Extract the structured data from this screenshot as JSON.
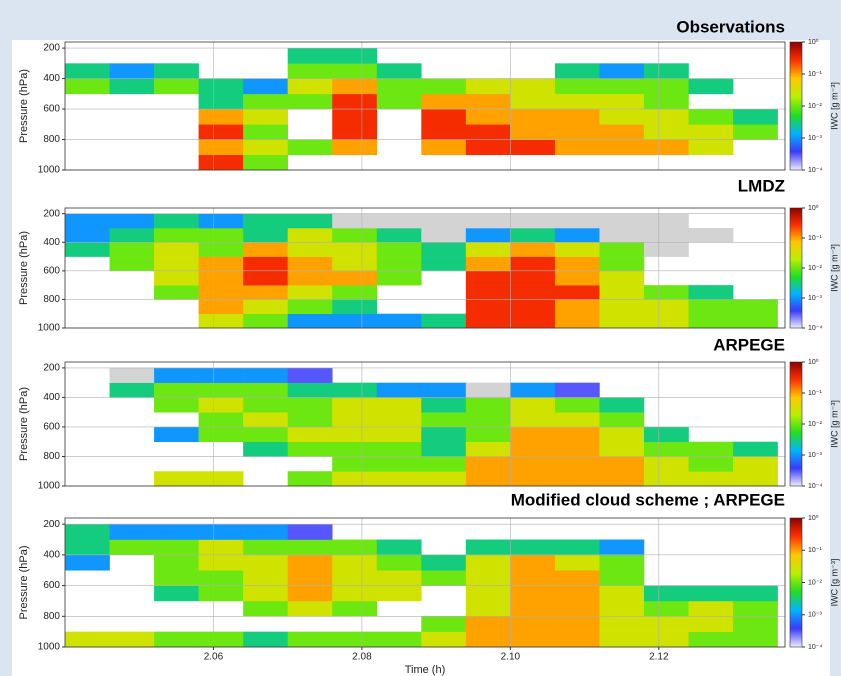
{
  "chart_data": [
    {
      "type": "heatmap",
      "title": "Observations",
      "ylabel": "Pressure (hPa)",
      "xbins": [
        2.04,
        2.046,
        2.052,
        2.058,
        2.064,
        2.07,
        2.076,
        2.082,
        2.088,
        2.094,
        2.1,
        2.106,
        2.112,
        2.118,
        2.124,
        2.13,
        2.136
      ],
      "ybins": [
        1000,
        900,
        800,
        700,
        600,
        500,
        400,
        300,
        200
      ],
      "values": [
        [
          null,
          null,
          null,
          0.3,
          0.01,
          null,
          null,
          null,
          null,
          null,
          null,
          null,
          null,
          null,
          null,
          null
        ],
        [
          null,
          null,
          null,
          0.1,
          0.03,
          0.01,
          0.1,
          null,
          0.1,
          0.3,
          0.3,
          0.1,
          0.1,
          0.1,
          0.03,
          null
        ],
        [
          null,
          null,
          null,
          0.3,
          0.01,
          null,
          0.3,
          null,
          0.3,
          0.3,
          0.1,
          0.1,
          0.1,
          0.03,
          0.03,
          0.01
        ],
        [
          null,
          null,
          null,
          0.1,
          0.03,
          null,
          0.3,
          null,
          0.3,
          0.1,
          0.1,
          0.1,
          0.03,
          0.03,
          0.01,
          0.003
        ],
        [
          null,
          null,
          null,
          0.003,
          0.01,
          0.01,
          0.3,
          0.01,
          0.1,
          0.1,
          0.03,
          0.03,
          0.03,
          0.01,
          null,
          null
        ],
        [
          0.01,
          0.003,
          0.01,
          0.003,
          0.001,
          0.03,
          0.1,
          0.01,
          0.01,
          0.03,
          0.03,
          0.01,
          0.01,
          0.01,
          0.003,
          null
        ],
        [
          0.003,
          0.001,
          0.003,
          null,
          null,
          0.01,
          0.01,
          0.003,
          null,
          null,
          null,
          0.003,
          0.001,
          0.003,
          null,
          null
        ],
        [
          null,
          null,
          null,
          null,
          null,
          0.003,
          0.003,
          null,
          null,
          null,
          null,
          null,
          null,
          null,
          null,
          null
        ]
      ],
      "xlim": [
        2.04,
        2.137
      ],
      "ylim": [
        1000,
        160
      ],
      "xticks": [
        2.06,
        2.08,
        {
          "value": 2.1,
          "label": "2.10"
        },
        2.12
      ],
      "yticks": [
        200,
        400,
        600,
        800,
        1000
      ],
      "grid": true,
      "colorbar": {
        "label": "IWC [g m⁻³]",
        "log": true,
        "lim": [
          0.0001,
          1
        ],
        "ticks": [
          {
            "value": 1,
            "label": "10⁰"
          },
          {
            "value": 0.1,
            "label": "10⁻¹"
          },
          {
            "value": 0.01,
            "label": "10⁻²"
          },
          {
            "value": 0.001,
            "label": "10⁻³"
          },
          {
            "value": 0.0001,
            "label": "10⁻⁴"
          }
        ],
        "colormap": [
          "#ececff",
          "#3a3aff",
          "#00b4ff",
          "#22dd22",
          "#b8f000",
          "#ffc800",
          "#ff3000",
          "#8c0000"
        ],
        "under_color": "#d3d3d3"
      }
    },
    {
      "type": "heatmap",
      "title": "LMDZ",
      "ylabel": "Pressure (hPa)",
      "xbins": [
        2.04,
        2.046,
        2.052,
        2.058,
        2.064,
        2.07,
        2.076,
        2.082,
        2.088,
        2.094,
        2.1,
        2.106,
        2.112,
        2.118,
        2.124,
        2.13,
        2.136
      ],
      "ybins": [
        1000,
        900,
        800,
        700,
        600,
        500,
        400,
        300,
        200
      ],
      "values": [
        [
          null,
          null,
          null,
          0.03,
          0.01,
          0.001,
          0.001,
          0.001,
          0.003,
          0.3,
          0.3,
          0.1,
          0.03,
          0.03,
          0.01,
          0.01
        ],
        [
          null,
          null,
          null,
          0.1,
          0.03,
          0.01,
          0.003,
          null,
          null,
          0.3,
          0.3,
          0.1,
          0.03,
          0.03,
          0.01,
          0.01
        ],
        [
          null,
          null,
          0.01,
          0.1,
          0.1,
          0.03,
          0.01,
          null,
          null,
          0.3,
          0.3,
          0.3,
          0.03,
          0.01,
          0.003,
          null
        ],
        [
          null,
          null,
          0.03,
          0.1,
          0.3,
          0.1,
          0.1,
          0.01,
          null,
          0.3,
          0.3,
          0.1,
          0.03,
          null,
          null,
          null
        ],
        [
          null,
          0.01,
          0.03,
          0.1,
          0.3,
          0.1,
          0.03,
          0.01,
          0.003,
          0.1,
          0.3,
          0.1,
          0.01,
          null,
          null,
          null
        ],
        [
          0.003,
          0.01,
          0.03,
          0.01,
          0.1,
          0.03,
          0.03,
          0.01,
          0.003,
          0.03,
          0.1,
          0.03,
          0.01,
          5e-05,
          null,
          null
        ],
        [
          0.001,
          0.003,
          0.01,
          0.01,
          0.003,
          0.03,
          0.01,
          0.003,
          5e-05,
          0.001,
          0.003,
          0.001,
          5e-05,
          5e-05,
          5e-05,
          null
        ],
        [
          0.001,
          0.001,
          0.003,
          0.001,
          0.003,
          0.003,
          5e-05,
          5e-05,
          5e-05,
          5e-05,
          5e-05,
          5e-05,
          5e-05,
          5e-05,
          null,
          null
        ]
      ],
      "xlim": [
        2.04,
        2.137
      ],
      "ylim": [
        1000,
        160
      ],
      "xticks": [
        2.06,
        2.08,
        {
          "value": 2.1,
          "label": "2.10"
        },
        2.12
      ],
      "yticks": [
        200,
        400,
        600,
        800,
        1000
      ],
      "grid": true,
      "colorbar": {
        "label": "IWC [g m⁻³]",
        "log": true,
        "lim": [
          0.0001,
          1
        ],
        "ticks": [
          {
            "value": 1,
            "label": "10⁰"
          },
          {
            "value": 0.1,
            "label": "10⁻¹"
          },
          {
            "value": 0.01,
            "label": "10⁻²"
          },
          {
            "value": 0.001,
            "label": "10⁻³"
          },
          {
            "value": 0.0001,
            "label": "10⁻⁴"
          }
        ],
        "colormap": [
          "#ececff",
          "#3a3aff",
          "#00b4ff",
          "#22dd22",
          "#b8f000",
          "#ffc800",
          "#ff3000",
          "#8c0000"
        ],
        "under_color": "#d3d3d3"
      }
    },
    {
      "type": "heatmap",
      "title": "ARPEGE",
      "ylabel": "Pressure (hPa)",
      "xbins": [
        2.04,
        2.046,
        2.052,
        2.058,
        2.064,
        2.07,
        2.076,
        2.082,
        2.088,
        2.094,
        2.1,
        2.106,
        2.112,
        2.118,
        2.124,
        2.13,
        2.136
      ],
      "ybins": [
        1000,
        900,
        800,
        700,
        600,
        500,
        400,
        300,
        200
      ],
      "values": [
        [
          null,
          null,
          0.03,
          0.03,
          null,
          0.01,
          0.03,
          0.03,
          0.03,
          0.1,
          0.1,
          0.1,
          0.1,
          0.03,
          0.03,
          0.03
        ],
        [
          null,
          null,
          null,
          null,
          null,
          null,
          0.01,
          0.01,
          0.01,
          0.1,
          0.1,
          0.1,
          0.1,
          0.03,
          0.01,
          0.03
        ],
        [
          null,
          null,
          null,
          null,
          0.003,
          0.01,
          0.01,
          0.01,
          0.003,
          0.03,
          0.1,
          0.1,
          0.03,
          0.01,
          0.01,
          0.003
        ],
        [
          null,
          null,
          0.001,
          0.01,
          0.01,
          0.03,
          0.03,
          0.03,
          0.003,
          0.01,
          0.1,
          0.1,
          0.03,
          0.003,
          null,
          null
        ],
        [
          null,
          null,
          null,
          0.01,
          0.03,
          0.01,
          0.03,
          0.03,
          0.01,
          0.01,
          0.03,
          0.03,
          0.01,
          null,
          null,
          null
        ],
        [
          null,
          null,
          0.01,
          0.03,
          0.01,
          0.01,
          0.03,
          0.03,
          0.003,
          0.01,
          0.03,
          0.01,
          0.003,
          null,
          null,
          null
        ],
        [
          null,
          0.003,
          0.01,
          0.01,
          0.01,
          0.003,
          0.003,
          0.001,
          0.001,
          5e-05,
          0.001,
          0.0003,
          null,
          null,
          null,
          null
        ],
        [
          null,
          5e-05,
          0.001,
          0.001,
          0.001,
          0.0003,
          null,
          null,
          null,
          null,
          null,
          null,
          null,
          null,
          null,
          null
        ]
      ],
      "xlim": [
        2.04,
        2.137
      ],
      "ylim": [
        1000,
        160
      ],
      "xticks": [
        2.06,
        2.08,
        {
          "value": 2.1,
          "label": "2.10"
        },
        2.12
      ],
      "yticks": [
        200,
        400,
        600,
        800,
        1000
      ],
      "grid": true,
      "colorbar": {
        "label": "IWC [g m⁻³]",
        "log": true,
        "lim": [
          0.0001,
          1
        ],
        "ticks": [
          {
            "value": 1,
            "label": "10⁰"
          },
          {
            "value": 0.1,
            "label": "10⁻¹"
          },
          {
            "value": 0.01,
            "label": "10⁻²"
          },
          {
            "value": 0.001,
            "label": "10⁻³"
          },
          {
            "value": 0.0001,
            "label": "10⁻⁴"
          }
        ],
        "colormap": [
          "#ececff",
          "#3a3aff",
          "#00b4ff",
          "#22dd22",
          "#b8f000",
          "#ffc800",
          "#ff3000",
          "#8c0000"
        ],
        "under_color": "#d3d3d3"
      }
    },
    {
      "type": "heatmap",
      "title": "Modified cloud scheme ; ARPEGE",
      "ylabel": "Pressure (hPa)",
      "xlabel": "Time (h)",
      "xbins": [
        2.04,
        2.046,
        2.052,
        2.058,
        2.064,
        2.07,
        2.076,
        2.082,
        2.088,
        2.094,
        2.1,
        2.106,
        2.112,
        2.118,
        2.124,
        2.13,
        2.136
      ],
      "ybins": [
        1000,
        900,
        800,
        700,
        600,
        500,
        400,
        300,
        200
      ],
      "values": [
        [
          0.03,
          0.03,
          0.01,
          0.01,
          0.003,
          0.01,
          0.01,
          0.01,
          0.03,
          0.1,
          0.1,
          0.1,
          0.03,
          0.03,
          0.01,
          0.01
        ],
        [
          null,
          null,
          null,
          null,
          null,
          null,
          null,
          null,
          0.01,
          0.1,
          0.1,
          0.1,
          0.03,
          0.03,
          0.03,
          0.01
        ],
        [
          null,
          null,
          null,
          null,
          0.01,
          0.03,
          0.01,
          null,
          null,
          0.03,
          0.1,
          0.1,
          0.03,
          0.01,
          0.03,
          0.01
        ],
        [
          null,
          null,
          0.003,
          0.01,
          0.03,
          0.1,
          0.03,
          0.03,
          null,
          0.03,
          0.1,
          0.1,
          0.03,
          0.003,
          0.003,
          0.003
        ],
        [
          null,
          null,
          0.01,
          0.01,
          0.03,
          0.1,
          0.03,
          0.03,
          0.01,
          0.03,
          0.1,
          0.1,
          0.01,
          null,
          null,
          null
        ],
        [
          0.001,
          null,
          0.01,
          0.03,
          0.03,
          0.1,
          0.03,
          0.01,
          0.003,
          0.03,
          0.1,
          0.03,
          0.01,
          null,
          null,
          null
        ],
        [
          0.003,
          0.01,
          0.01,
          0.03,
          0.01,
          0.01,
          0.01,
          0.003,
          null,
          0.003,
          0.003,
          0.003,
          0.001,
          null,
          null,
          null
        ],
        [
          0.003,
          0.001,
          0.001,
          0.001,
          0.001,
          0.0003,
          null,
          null,
          null,
          null,
          null,
          null,
          null,
          null,
          null,
          null
        ]
      ],
      "xlim": [
        2.04,
        2.137
      ],
      "ylim": [
        1000,
        160
      ],
      "xticks": [
        2.06,
        2.08,
        {
          "value": 2.1,
          "label": "2.10"
        },
        2.12
      ],
      "yticks": [
        200,
        400,
        600,
        800,
        1000
      ],
      "grid": true,
      "colorbar": {
        "label": "IWC [g m⁻³]",
        "log": true,
        "lim": [
          0.0001,
          1
        ],
        "ticks": [
          {
            "value": 1,
            "label": "10⁰"
          },
          {
            "value": 0.1,
            "label": "10⁻¹"
          },
          {
            "value": 0.01,
            "label": "10⁻²"
          },
          {
            "value": 0.001,
            "label": "10⁻³"
          },
          {
            "value": 0.0001,
            "label": "10⁻⁴"
          }
        ],
        "colormap": [
          "#ececff",
          "#3a3aff",
          "#00b4ff",
          "#22dd22",
          "#b8f000",
          "#ffc800",
          "#ff3000",
          "#8c0000"
        ],
        "under_color": "#d3d3d3"
      }
    }
  ]
}
